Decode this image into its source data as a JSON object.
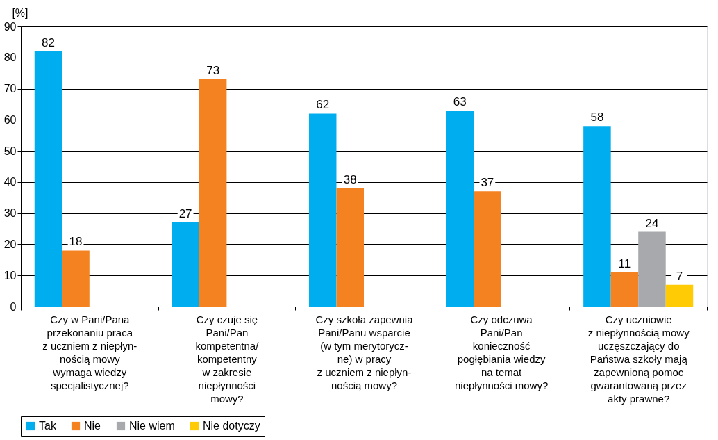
{
  "chart_data": {
    "type": "bar",
    "ylabel": "[%]",
    "categories": [
      "Czy w Pani/Pana\nprzekonaniu praca\nz uczniem z niepłyn-\nnością mowy\nwymaga wiedzy\nspecjalistycznej?",
      "Czy czuje się\nPani/Pan\nkompetentna/\nkompetentny\nw zakresie\nniepłynności\nmowy?",
      "Czy szkoła zapewnia\nPani/Panu wsparcie\n(w tym merytorycz-\nne) w pracy\nz uczniem z niepłyn-\nnością mowy?",
      "Czy odczuwa\nPani/Pan\nkonieczność\npogłębiania wiedzy\nna temat\nniepłynności mowy?",
      "Czy uczniowie\nz niepłynnością mowy\nuczęszczający do\nPaństwa szkoły mają\nzapewnioną pomoc\ngwarantowaną przez\nakty prawne?"
    ],
    "series": [
      {
        "name": "Tak",
        "color": "#00aeef",
        "values": [
          82,
          27,
          62,
          63,
          58
        ]
      },
      {
        "name": "Nie",
        "color": "#f58220",
        "values": [
          18,
          73,
          38,
          37,
          11
        ]
      },
      {
        "name": "Nie wiem",
        "color": "#a7a9ac",
        "values": [
          null,
          null,
          null,
          null,
          24
        ]
      },
      {
        "name": "Nie dotyczy",
        "color": "#ffcb05",
        "values": [
          null,
          null,
          null,
          null,
          7
        ]
      }
    ],
    "ylim": [
      0,
      90
    ],
    "yticks": [
      0,
      10,
      20,
      30,
      40,
      50,
      60,
      70,
      80,
      90
    ],
    "grid": "y",
    "legend": "bottom",
    "data_labels": true
  }
}
